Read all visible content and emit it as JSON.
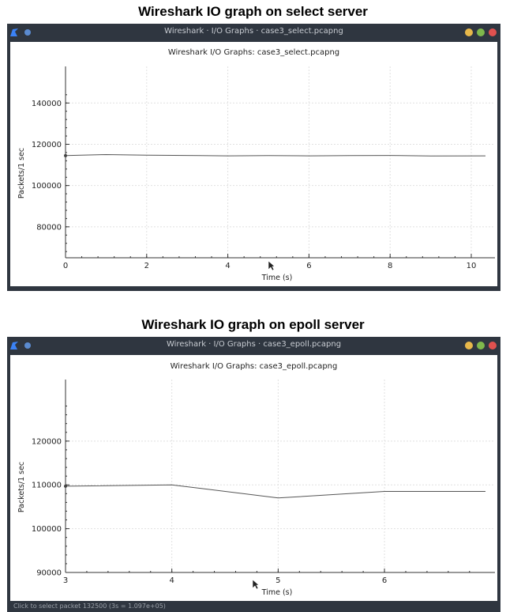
{
  "headings": {
    "select": "Wireshark IO graph on select server",
    "epoll": "Wireshark IO graph on epoll server"
  },
  "windows": [
    {
      "window_title": "Wireshark · I/O Graphs · case3_select.pcapng",
      "status_text": ""
    },
    {
      "window_title": "Wireshark · I/O Graphs · case3_epoll.pcapng",
      "status_text": "Click to select packet 132500 (3s = 1.097e+05)"
    }
  ],
  "icons": {
    "logo": "wireshark-fin-icon",
    "pin": "pin-icon",
    "minimize": "minimize-icon",
    "maximize": "maximize-icon",
    "close": "close-icon",
    "cursor": "mouse-pointer-icon"
  },
  "colors": {
    "titlebar": "#2f3640",
    "minimize": "#e8b84a",
    "maximize": "#7fb84c",
    "close": "#e0514f",
    "series": "#555555"
  },
  "chart_data": [
    {
      "type": "line",
      "title": "Wireshark I/O Graphs: case3_select.pcapng",
      "xlabel": "Time (s)",
      "ylabel": "Packets/1 sec",
      "xlim": [
        0,
        10.35
      ],
      "ylim": [
        65000,
        147000
      ],
      "xticks": [
        0,
        2,
        4,
        6,
        8,
        10
      ],
      "yticks": [
        80000,
        100000,
        120000,
        140000
      ],
      "grid": true,
      "series": [
        {
          "x": [
            0,
            1,
            2,
            3,
            4,
            5,
            6,
            7,
            8,
            9,
            10.35
          ],
          "y": [
            114500,
            115000,
            114700,
            114600,
            114400,
            114500,
            114400,
            114500,
            114600,
            114300,
            114400
          ]
        }
      ]
    },
    {
      "type": "line",
      "title": "Wireshark I/O Graphs: case3_epoll.pcapng",
      "xlabel": "Time (s)",
      "ylabel": "Packets/1 sec",
      "xlim": [
        3,
        6.95
      ],
      "ylim": [
        90000,
        129000
      ],
      "xticks": [
        3,
        4,
        5,
        6
      ],
      "yticks": [
        90000,
        100000,
        110000,
        120000
      ],
      "grid": true,
      "series": [
        {
          "x": [
            3,
            4,
            5,
            6,
            6.95
          ],
          "y": [
            109700,
            110000,
            107000,
            108500,
            108500
          ]
        }
      ]
    }
  ]
}
